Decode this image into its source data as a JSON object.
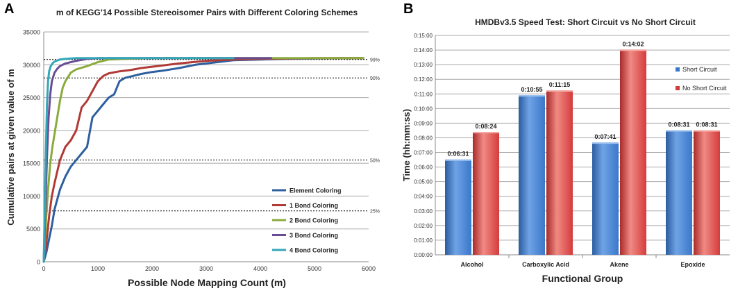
{
  "panels": {
    "a_label": "A",
    "b_label": "B"
  },
  "chart_data": [
    {
      "type": "line",
      "title": "m of KEGG'14 Possible Stereoisomer Pairs with Different Coloring Schemes",
      "xlabel": "Possible Node Mapping Count (m)",
      "ylabel": "Cumulative pairs at given value of m",
      "xlim": [
        0,
        6000
      ],
      "ylim": [
        0,
        35000
      ],
      "xticks": [
        0,
        1000,
        2000,
        3000,
        4000,
        5000,
        6000
      ],
      "yticks": [
        0,
        5000,
        10000,
        15000,
        20000,
        25000,
        30000,
        35000
      ],
      "grid": true,
      "legend_position": "bottom-right",
      "reference_lines": [
        {
          "label": "99%",
          "value": 30800
        },
        {
          "label": "90%",
          "value": 28000
        },
        {
          "label": "50%",
          "value": 15500
        },
        {
          "label": "25%",
          "value": 7750
        }
      ],
      "series": [
        {
          "name": "Element Coloring",
          "color": "#2e5f9e",
          "x": [
            0,
            50,
            100,
            150,
            200,
            300,
            400,
            500,
            600,
            700,
            800,
            900,
            1000,
            1100,
            1200,
            1300,
            1400,
            1500,
            1600,
            1800,
            2000,
            2200,
            2500,
            2800,
            3000,
            3300,
            3500,
            4000,
            4500,
            5000,
            5500,
            5900
          ],
          "y": [
            0,
            1500,
            3500,
            5500,
            8000,
            11000,
            13000,
            14500,
            15500,
            16500,
            17500,
            22000,
            23000,
            24000,
            25000,
            25500,
            27500,
            28000,
            28200,
            28600,
            28900,
            29100,
            29500,
            30000,
            30200,
            30500,
            30700,
            30800,
            30900,
            30950,
            31000,
            31000
          ]
        },
        {
          "name": "1 Bond Coloring",
          "color": "#b03a36",
          "x": [
            0,
            50,
            100,
            150,
            200,
            300,
            400,
            500,
            600,
            700,
            800,
            900,
            1000,
            1100,
            1200,
            1400,
            1600,
            1800,
            2000,
            2500,
            3000,
            3500,
            4000,
            5000,
            5900
          ],
          "y": [
            0,
            3000,
            7000,
            10000,
            12000,
            15500,
            17500,
            18500,
            20000,
            23500,
            24500,
            26000,
            27500,
            28300,
            28700,
            29000,
            29200,
            29500,
            29700,
            30200,
            30600,
            30800,
            30900,
            31000,
            31000
          ]
        },
        {
          "name": "2 Bond Coloring",
          "color": "#8aab3c",
          "x": [
            0,
            40,
            80,
            120,
            160,
            200,
            250,
            300,
            350,
            400,
            500,
            600,
            800,
            1000,
            1200,
            1500,
            2000,
            3000,
            4000,
            5900
          ],
          "y": [
            0,
            6000,
            11000,
            15000,
            17500,
            19500,
            22000,
            24500,
            26500,
            27500,
            28800,
            29300,
            29800,
            30400,
            30800,
            30900,
            31000,
            31000,
            31000,
            31000
          ]
        },
        {
          "name": "3 Bond Coloring",
          "color": "#6a4c93",
          "x": [
            0,
            30,
            60,
            90,
            120,
            150,
            200,
            250,
            300,
            400,
            600,
            800,
            1000,
            1500,
            2000,
            3000,
            4200
          ],
          "y": [
            0,
            8000,
            16000,
            22000,
            25500,
            27500,
            28800,
            29400,
            29800,
            30200,
            30600,
            30900,
            31000,
            31000,
            31000,
            31000,
            31000
          ]
        },
        {
          "name": "4 Bond Coloring",
          "color": "#33a6b8",
          "x": [
            0,
            20,
            40,
            60,
            80,
            100,
            130,
            160,
            200,
            300,
            400,
            600,
            800,
            1000,
            2000,
            3500
          ],
          "y": [
            0,
            9000,
            17000,
            24000,
            27500,
            29000,
            29800,
            30200,
            30500,
            30800,
            30900,
            31000,
            31000,
            31000,
            31000,
            31000
          ]
        }
      ]
    },
    {
      "type": "bar",
      "title": "HMDBv3.5 Speed Test: Short Circuit vs No Short Circuit",
      "xlabel": "Functional Group",
      "ylabel": "Time (hh:mm:ss)",
      "categories": [
        "Alcohol",
        "Carboxylic Acid",
        "Akene",
        "Epoxide"
      ],
      "ylim_seconds": [
        0,
        900
      ],
      "ytick_step_seconds": 60,
      "ytick_labels": [
        "0:00:00",
        "0:01:00",
        "0:02:00",
        "0:03:00",
        "0:04:00",
        "0:05:00",
        "0:06:00",
        "0:07:00",
        "0:08:00",
        "0:09:00",
        "0:10:00",
        "0:11:00",
        "0:12:00",
        "0:13:00",
        "0:14:00",
        "0:15:00"
      ],
      "legend_position": "right",
      "series": [
        {
          "name": "Short Circuit",
          "color": "#3a78c9",
          "values_seconds": [
            391,
            655,
            461,
            511
          ],
          "labels": [
            "0:06:31",
            "0:10:55",
            "0:07:41",
            "0:08:31"
          ]
        },
        {
          "name": "No Short Circuit",
          "color": "#d43c3c",
          "values_seconds": [
            504,
            675,
            842,
            511
          ],
          "labels": [
            "0:08:24",
            "0:11:15",
            "0:14:02",
            "0:08:31"
          ]
        }
      ]
    }
  ]
}
